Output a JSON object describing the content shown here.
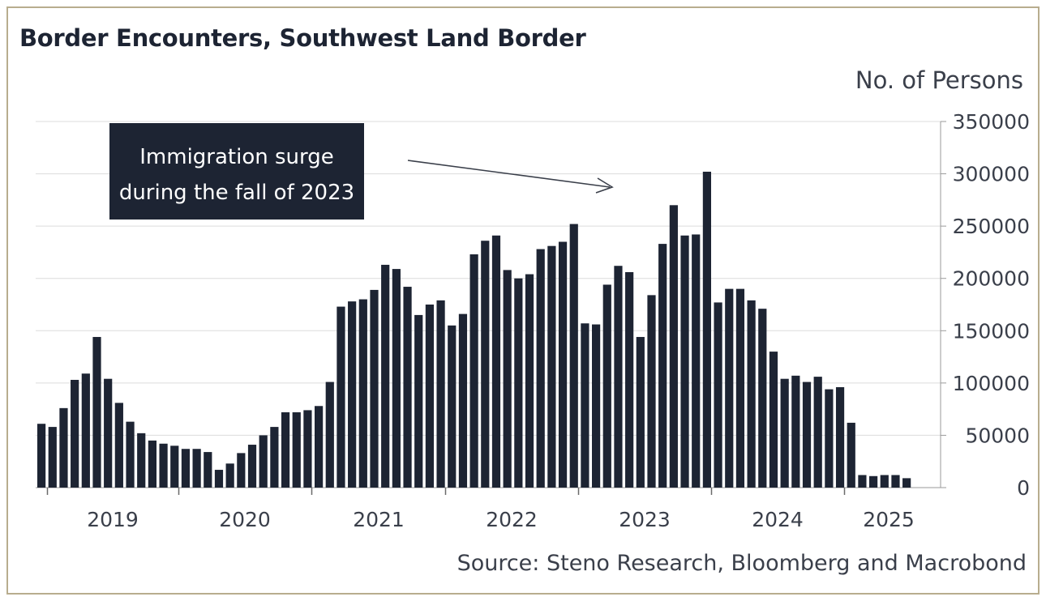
{
  "chart_data": {
    "type": "bar",
    "title": "Border Encounters, Southwest Land Border",
    "ylabel": "No. of Persons",
    "source": "Source: Steno Research, Bloomberg and Macrobond",
    "ylim": [
      0,
      350000
    ],
    "yticks": [
      0,
      50000,
      100000,
      150000,
      200000,
      250000,
      300000,
      350000
    ],
    "ytick_labels": [
      "0",
      "50000",
      "100000",
      "150000",
      "200000",
      "250000",
      "300000",
      "350000"
    ],
    "xtick_labels": [
      "2019",
      "2020",
      "2021",
      "2022",
      "2023",
      "2024",
      "2025"
    ],
    "grid": true,
    "color": "#1d2433",
    "annotation": {
      "lines": [
        "Immigration surge",
        "during the fall of 2023"
      ],
      "background": "#1d2433",
      "text_color": "#ffffff"
    },
    "series": [
      {
        "name": "Border Encounters",
        "values": [
          61000,
          58000,
          76000,
          103000,
          109000,
          144000,
          104000,
          81000,
          63000,
          52000,
          45000,
          42000,
          40000,
          37000,
          37000,
          34000,
          17000,
          23000,
          33000,
          41000,
          50000,
          58000,
          72000,
          72000,
          74000,
          78000,
          101000,
          173000,
          178000,
          180000,
          189000,
          213000,
          209000,
          192000,
          165000,
          175000,
          179000,
          155000,
          166000,
          223000,
          236000,
          241000,
          208000,
          200000,
          204000,
          228000,
          231000,
          235000,
          252000,
          157000,
          156000,
          194000,
          212000,
          206000,
          144000,
          184000,
          233000,
          270000,
          241000,
          242000,
          302000,
          177000,
          190000,
          190000,
          179000,
          171000,
          130000,
          104000,
          107000,
          101000,
          106000,
          94000,
          96000,
          62000,
          12000,
          11000,
          12000,
          12000,
          9000
        ]
      }
    ]
  }
}
